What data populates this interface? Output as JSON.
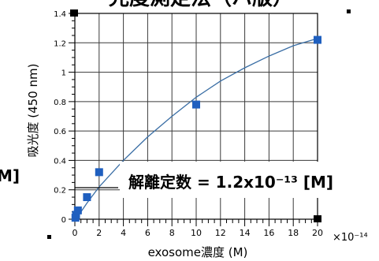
{
  "chart_data": {
    "type": "scatter",
    "title": "光度測定法（ハ版）",
    "xlabel": "exosome濃度 (M)",
    "ylabel": "吸光度 (450 nm)",
    "x_multiplier_label": "×10⁻¹⁴",
    "xlim": [
      0,
      20
    ],
    "ylim": [
      0,
      1.4
    ],
    "x_ticks": [
      0,
      2,
      4,
      6,
      8,
      10,
      12,
      14,
      16,
      18,
      20
    ],
    "y_ticks": [
      0,
      0.2,
      0.4,
      0.6,
      0.8,
      1,
      1.2,
      1.4
    ],
    "x_tick_labels": [
      "0",
      "2",
      "4",
      "6",
      "8",
      "10",
      "12",
      "14",
      "16",
      "18",
      "20"
    ],
    "y_tick_labels": [
      "0",
      "0.2",
      "0.4",
      "0.6",
      "0.8",
      "1",
      "1.2",
      "1.4"
    ],
    "grid": true,
    "marker_color": "#1f5fbf",
    "curve_color": "#3a6ea5",
    "series": [
      {
        "x": [
          0.05,
          0.1,
          0.25,
          1.0,
          2.0,
          10.0,
          20.0
        ],
        "y": [
          0.01,
          0.03,
          0.06,
          0.15,
          0.32,
          0.78,
          1.22
        ]
      }
    ],
    "fit_curve": {
      "model": "saturation",
      "x": [
        0,
        0.5,
        1,
        2,
        3,
        4,
        5,
        6,
        8,
        10,
        12,
        14,
        16,
        18,
        20
      ],
      "y": [
        0,
        0.05,
        0.11,
        0.22,
        0.31,
        0.4,
        0.48,
        0.56,
        0.7,
        0.83,
        0.94,
        1.03,
        1.11,
        1.18,
        1.23
      ]
    },
    "annotation": "解離定数 = 1.2x10⁻¹³ [M]",
    "left_fragment": "M]"
  }
}
